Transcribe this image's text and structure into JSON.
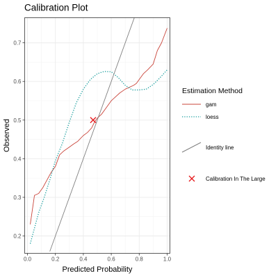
{
  "chart_data": {
    "type": "line",
    "title": "Calibration Plot",
    "xlabel": "Predicted Probability",
    "ylabel": "Observed",
    "xlim": [
      -0.02,
      1.02
    ],
    "ylim": [
      0.155,
      0.765
    ],
    "x_ticks": [
      0.0,
      0.2,
      0.4,
      0.6,
      0.8,
      1.0
    ],
    "x_tick_labels": [
      "0.0",
      "0.2",
      "0.4",
      "0.6",
      "0.8",
      "1.0"
    ],
    "y_ticks": [
      0.2,
      0.3,
      0.4,
      0.5,
      0.6,
      0.7
    ],
    "y_tick_labels": [
      "0.2",
      "0.3",
      "0.4",
      "0.5",
      "0.6",
      "0.7"
    ],
    "grid": true,
    "legend_position": "right",
    "legend_title": "Estimation Method",
    "series": [
      {
        "name": "gam",
        "color": "#c9443a",
        "style": "solid",
        "x": [
          0.02,
          0.05,
          0.08,
          0.11,
          0.14,
          0.17,
          0.2,
          0.23,
          0.26,
          0.3,
          0.33,
          0.36,
          0.4,
          0.43,
          0.46,
          0.48,
          0.5,
          0.53,
          0.56,
          0.6,
          0.63,
          0.66,
          0.7,
          0.73,
          0.76,
          0.78,
          0.8,
          0.83,
          0.86,
          0.9,
          0.93,
          0.96,
          1.0
        ],
        "y": [
          0.23,
          0.305,
          0.31,
          0.325,
          0.345,
          0.365,
          0.38,
          0.41,
          0.42,
          0.43,
          0.438,
          0.445,
          0.46,
          0.468,
          0.48,
          0.495,
          0.505,
          0.515,
          0.53,
          0.55,
          0.56,
          0.57,
          0.58,
          0.585,
          0.59,
          0.595,
          0.605,
          0.62,
          0.63,
          0.645,
          0.68,
          0.7,
          0.738
        ]
      },
      {
        "name": "loess",
        "color": "#1a9e9e",
        "style": "dotted",
        "x": [
          0.02,
          0.05,
          0.08,
          0.12,
          0.16,
          0.2,
          0.25,
          0.3,
          0.35,
          0.4,
          0.45,
          0.5,
          0.55,
          0.6,
          0.65,
          0.7,
          0.75,
          0.8,
          0.85,
          0.9,
          0.95,
          1.0
        ],
        "y": [
          0.18,
          0.22,
          0.26,
          0.3,
          0.345,
          0.395,
          0.44,
          0.495,
          0.545,
          0.58,
          0.605,
          0.62,
          0.626,
          0.625,
          0.61,
          0.59,
          0.578,
          0.578,
          0.58,
          0.592,
          0.61,
          0.63
        ]
      },
      {
        "name": "Identity line",
        "color": "#808080",
        "style": "solid",
        "x": [
          0.16,
          0.78
        ],
        "y": [
          0.16,
          0.78
        ]
      }
    ],
    "points": [
      {
        "name": "Calibration In The Large",
        "color": "#e6191c",
        "marker": "x",
        "x": 0.47,
        "y": 0.5
      }
    ]
  }
}
